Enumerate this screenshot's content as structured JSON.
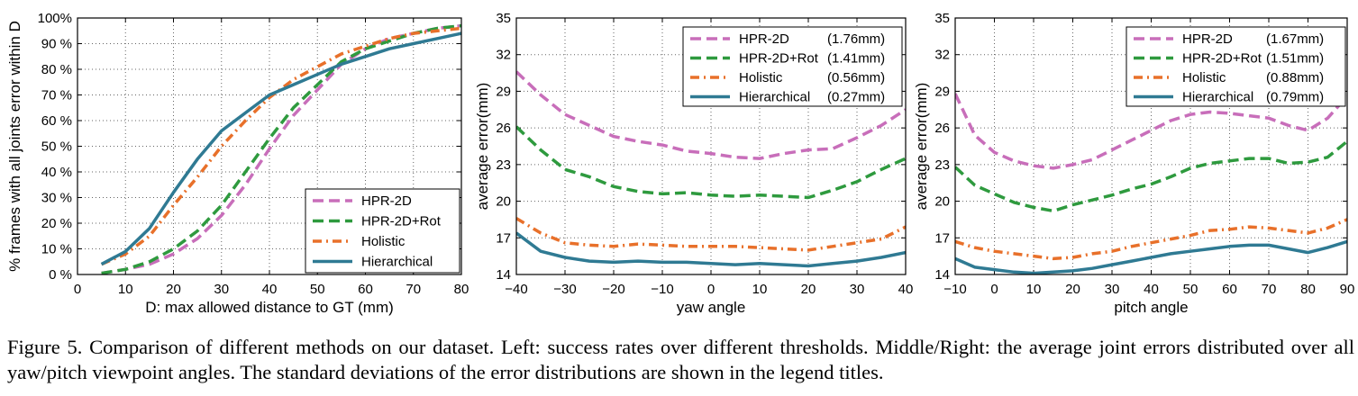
{
  "caption": "Figure 5. Comparison of different methods on our dataset. Left: success rates over different thresholds. Middle/Right: the average joint errors distributed over all yaw/pitch viewpoint angles. The standard deviations of the error distributions are shown in the legend titles.",
  "colors": {
    "HPR-2D": "#c86eba",
    "HPR-2D+Rot": "#2e9a3e",
    "Holistic": "#e8702a",
    "Hierarchical": "#2f7a93"
  },
  "chart_data": [
    {
      "type": "line",
      "title": "",
      "xlabel": "D: max allowed distance to GT (mm)",
      "ylabel": "% frames with all joints error within D",
      "xlim": [
        0,
        80
      ],
      "ylim": [
        0,
        100
      ],
      "xticks": [
        "0",
        "10",
        "20",
        "30",
        "40",
        "50",
        "60",
        "70",
        "80"
      ],
      "yticks": [
        "0 %",
        "10 %",
        "20 %",
        "30 %",
        "40 %",
        "50 %",
        "60 %",
        "70 %",
        "80 %",
        "90 %",
        "100%"
      ],
      "grid": true,
      "legend_position": "bottom-right",
      "x": [
        5,
        10,
        15,
        20,
        25,
        30,
        35,
        40,
        45,
        50,
        55,
        60,
        65,
        70,
        75,
        80
      ],
      "series": [
        {
          "name": "HPR-2D",
          "style": "dashed",
          "values": [
            0.5,
            2,
            4,
            8,
            14,
            23,
            35,
            49,
            62,
            72,
            82,
            88,
            92,
            94,
            96,
            97
          ]
        },
        {
          "name": "HPR-2D+Rot",
          "style": "dashed",
          "values": [
            0.5,
            2,
            5,
            10,
            17,
            27,
            40,
            53,
            65,
            74,
            83,
            88,
            91,
            94,
            96,
            97
          ]
        },
        {
          "name": "Holistic",
          "style": "dashdot",
          "values": [
            4,
            8,
            15,
            27,
            38,
            50,
            60,
            69,
            76,
            81,
            86,
            89,
            92,
            94,
            95,
            96
          ]
        },
        {
          "name": "Hierarchical",
          "style": "solid",
          "values": [
            4,
            9,
            18,
            32,
            45,
            56,
            63,
            70,
            74,
            78,
            82,
            85,
            88,
            90,
            92,
            94
          ]
        }
      ]
    },
    {
      "type": "line",
      "title": "",
      "xlabel": "yaw angle",
      "ylabel": "average error(mm)",
      "xlim": [
        -40,
        40
      ],
      "ylim": [
        14,
        35
      ],
      "xticks": [
        "−40",
        "−30",
        "−20",
        "−10",
        "0",
        "10",
        "20",
        "30",
        "40"
      ],
      "yticks": [
        "14",
        "17",
        "20",
        "23",
        "26",
        "29",
        "32",
        "35"
      ],
      "grid": true,
      "legend_position": "top-right",
      "x": [
        -40,
        -35,
        -30,
        -25,
        -20,
        -15,
        -10,
        -5,
        0,
        5,
        10,
        15,
        20,
        25,
        30,
        35,
        40
      ],
      "series": [
        {
          "name": "HPR-2D",
          "legend_value": "(1.76mm)",
          "style": "dashed",
          "values": [
            30.6,
            28.7,
            27.1,
            26.2,
            25.3,
            24.9,
            24.6,
            24.1,
            23.9,
            23.6,
            23.5,
            23.9,
            24.2,
            24.3,
            25.2,
            26.2,
            27.5
          ]
        },
        {
          "name": "HPR-2D+Rot",
          "legend_value": "(1.41mm)",
          "style": "dashed",
          "values": [
            26.1,
            24.2,
            22.6,
            22.0,
            21.2,
            20.8,
            20.6,
            20.7,
            20.5,
            20.4,
            20.5,
            20.4,
            20.3,
            20.9,
            21.6,
            22.6,
            23.5
          ]
        },
        {
          "name": "Holistic",
          "legend_value": "(0.56mm)",
          "style": "dashdot",
          "values": [
            18.6,
            17.4,
            16.6,
            16.4,
            16.3,
            16.5,
            16.4,
            16.3,
            16.3,
            16.3,
            16.2,
            16.1,
            16.0,
            16.3,
            16.6,
            16.9,
            17.9
          ]
        },
        {
          "name": "Hierarchical",
          "legend_value": "(0.27mm)",
          "style": "solid",
          "values": [
            17.4,
            15.9,
            15.4,
            15.1,
            15.0,
            15.1,
            15.0,
            15.0,
            14.9,
            14.8,
            14.9,
            14.8,
            14.7,
            14.9,
            15.1,
            15.4,
            15.8
          ]
        }
      ]
    },
    {
      "type": "line",
      "title": "",
      "xlabel": "pitch angle",
      "ylabel": "average error(mm)",
      "xlim": [
        -10,
        90
      ],
      "ylim": [
        14,
        35
      ],
      "xticks": [
        "−10",
        "0",
        "10",
        "20",
        "30",
        "40",
        "50",
        "60",
        "70",
        "80",
        "90"
      ],
      "yticks": [
        "14",
        "17",
        "20",
        "23",
        "26",
        "29",
        "32",
        "35"
      ],
      "grid": true,
      "legend_position": "top-right",
      "x": [
        -10,
        -5,
        0,
        5,
        10,
        15,
        20,
        25,
        30,
        35,
        40,
        45,
        50,
        55,
        60,
        65,
        70,
        75,
        80,
        85,
        90
      ],
      "series": [
        {
          "name": "HPR-2D",
          "legend_value": "(1.67mm)",
          "style": "dashed",
          "values": [
            28.8,
            25.4,
            24.0,
            23.3,
            22.9,
            22.7,
            23.0,
            23.4,
            24.2,
            25.0,
            25.8,
            26.6,
            27.1,
            27.3,
            27.2,
            27.0,
            26.8,
            26.2,
            25.8,
            26.8,
            28.6
          ]
        },
        {
          "name": "HPR-2D+Rot",
          "legend_value": "(1.51mm)",
          "style": "dashed",
          "values": [
            22.8,
            21.3,
            20.6,
            19.9,
            19.5,
            19.2,
            19.7,
            20.1,
            20.5,
            21.0,
            21.4,
            22.0,
            22.7,
            23.1,
            23.3,
            23.5,
            23.5,
            23.1,
            23.2,
            23.6,
            24.9
          ]
        },
        {
          "name": "Holistic",
          "legend_value": "(0.88mm)",
          "style": "dashdot",
          "values": [
            16.7,
            16.2,
            15.9,
            15.7,
            15.5,
            15.3,
            15.4,
            15.7,
            15.9,
            16.3,
            16.6,
            16.9,
            17.2,
            17.6,
            17.7,
            17.9,
            17.8,
            17.6,
            17.4,
            17.8,
            18.5
          ]
        },
        {
          "name": "Hierarchical",
          "legend_value": "(0.79mm)",
          "style": "solid",
          "values": [
            15.3,
            14.6,
            14.4,
            14.2,
            14.1,
            14.2,
            14.3,
            14.5,
            14.8,
            15.1,
            15.4,
            15.7,
            15.9,
            16.1,
            16.3,
            16.4,
            16.4,
            16.1,
            15.8,
            16.2,
            16.7
          ]
        }
      ]
    }
  ]
}
